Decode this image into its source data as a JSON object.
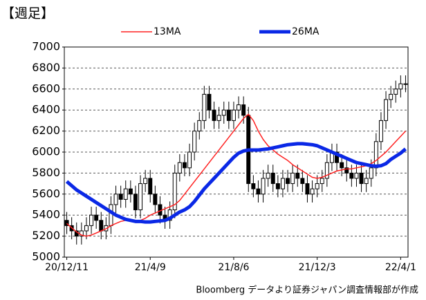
{
  "chart_data": {
    "type": "candlestick",
    "title": "【週足】",
    "source": "Bloomberg データより証券ジャパン調査情報部が作成",
    "categories": [
      "20/12/11",
      null,
      null,
      null,
      null,
      null,
      null,
      null,
      null,
      null,
      null,
      null,
      null,
      null,
      null,
      null,
      null,
      "21/4/9",
      null,
      null,
      null,
      null,
      null,
      null,
      null,
      null,
      null,
      null,
      null,
      null,
      null,
      null,
      null,
      null,
      "21/8/6",
      null,
      null,
      null,
      null,
      null,
      null,
      null,
      null,
      null,
      null,
      null,
      null,
      null,
      null,
      null,
      null,
      "21/12/3",
      null,
      null,
      null,
      null,
      null,
      null,
      null,
      null,
      null,
      null,
      null,
      null,
      null,
      null,
      null,
      null,
      "22/4/1",
      null
    ],
    "open": [
      5350,
      5300,
      5250,
      5200,
      5250,
      5300,
      5400,
      5350,
      5250,
      5300,
      5500,
      5600,
      5550,
      5650,
      5600,
      5450,
      5700,
      5750,
      5600,
      5500,
      5400,
      5350,
      5450,
      5800,
      5900,
      5850,
      6000,
      6200,
      6300,
      6550,
      6400,
      6300,
      6350,
      6400,
      6300,
      6400,
      6450,
      6350,
      5700,
      5650,
      5600,
      5750,
      5800,
      5700,
      5650,
      5750,
      5700,
      5800,
      5750,
      5700,
      5600,
      5650,
      5700,
      5750,
      5900,
      6000,
      5900,
      5850,
      5800,
      5750,
      5800,
      5700,
      5750,
      5850,
      6100,
      6300,
      6500,
      6550,
      6600,
      6650
    ],
    "high": [
      5430,
      5380,
      5330,
      5330,
      5380,
      5480,
      5480,
      5430,
      5380,
      5580,
      5680,
      5680,
      5730,
      5730,
      5680,
      5780,
      5830,
      5830,
      5680,
      5580,
      5480,
      5530,
      5880,
      5980,
      5980,
      6080,
      6280,
      6380,
      6630,
      6630,
      6480,
      6430,
      6480,
      6480,
      6480,
      6530,
      6530,
      6430,
      5780,
      5730,
      5830,
      5880,
      5880,
      5780,
      5830,
      5830,
      5880,
      5880,
      5830,
      5780,
      5730,
      5780,
      5830,
      5980,
      6080,
      6080,
      5980,
      5930,
      5880,
      5880,
      5880,
      5830,
      5930,
      6180,
      6380,
      6580,
      6630,
      6680,
      6730,
      6730
    ],
    "low": [
      5220,
      5170,
      5120,
      5120,
      5170,
      5220,
      5270,
      5170,
      5170,
      5220,
      5420,
      5470,
      5470,
      5520,
      5370,
      5370,
      5620,
      5520,
      5420,
      5320,
      5270,
      5270,
      5370,
      5720,
      5770,
      5770,
      5920,
      6120,
      6220,
      6320,
      6220,
      6220,
      6270,
      6220,
      6220,
      6320,
      6270,
      5620,
      5570,
      5520,
      5520,
      5670,
      5620,
      5570,
      5570,
      5620,
      5620,
      5670,
      5620,
      5520,
      5520,
      5570,
      5620,
      5670,
      5820,
      5820,
      5770,
      5720,
      5670,
      5670,
      5620,
      5620,
      5670,
      5770,
      6020,
      6220,
      6420,
      6470,
      6520,
      6570
    ],
    "close": [
      5300,
      5250,
      5200,
      5250,
      5300,
      5400,
      5350,
      5250,
      5300,
      5500,
      5600,
      5550,
      5650,
      5600,
      5450,
      5700,
      5750,
      5600,
      5500,
      5400,
      5350,
      5450,
      5800,
      5900,
      5850,
      6000,
      6200,
      6300,
      6550,
      6400,
      6300,
      6350,
      6400,
      6300,
      6400,
      6450,
      6350,
      5700,
      5650,
      5600,
      5750,
      5800,
      5700,
      5650,
      5750,
      5700,
      5800,
      5750,
      5700,
      5600,
      5650,
      5700,
      5750,
      5900,
      6000,
      5900,
      5850,
      5800,
      5750,
      5800,
      5700,
      5750,
      5850,
      6100,
      6300,
      6500,
      6550,
      6600,
      6650,
      6650
    ],
    "color": "#000000",
    "series": [
      {
        "name": "13MA",
        "color": "#ff2020",
        "values": [
          5320,
          5280,
          5240,
          5210,
          5200,
          5210,
          5230,
          5250,
          5270,
          5300,
          5320,
          5340,
          5350,
          5360,
          5350,
          5350,
          5370,
          5400,
          5420,
          5440,
          5460,
          5480,
          5500,
          5540,
          5600,
          5660,
          5720,
          5780,
          5840,
          5900,
          5960,
          6020,
          6080,
          6140,
          6200,
          6260,
          6320,
          6360,
          6300,
          6200,
          6120,
          6060,
          6020,
          5980,
          5950,
          5920,
          5880,
          5850,
          5820,
          5790,
          5760,
          5750,
          5760,
          5780,
          5800,
          5820,
          5830,
          5840,
          5840,
          5850,
          5860,
          5870,
          5890,
          5920,
          5960,
          6000,
          6050,
          6100,
          6150,
          6200
        ]
      },
      {
        "name": "26MA",
        "color": "#0a28e6",
        "values": [
          5720,
          5680,
          5640,
          5610,
          5580,
          5550,
          5520,
          5490,
          5460,
          5430,
          5400,
          5380,
          5360,
          5350,
          5340,
          5340,
          5335,
          5335,
          5340,
          5345,
          5350,
          5370,
          5400,
          5430,
          5450,
          5480,
          5530,
          5590,
          5650,
          5700,
          5750,
          5800,
          5850,
          5900,
          5950,
          5990,
          6010,
          6020,
          6020,
          6020,
          6025,
          6030,
          6040,
          6050,
          6060,
          6070,
          6075,
          6080,
          6080,
          6075,
          6070,
          6060,
          6040,
          6020,
          6000,
          5980,
          5960,
          5940,
          5920,
          5900,
          5890,
          5880,
          5870,
          5865,
          5870,
          5890,
          5930,
          5960,
          5990,
          6030
        ]
      }
    ],
    "ylim": [
      5000,
      7000
    ],
    "yticks": [
      5000,
      5200,
      5400,
      5600,
      5800,
      6000,
      6200,
      6400,
      6600,
      6800,
      7000
    ],
    "grid": true
  }
}
